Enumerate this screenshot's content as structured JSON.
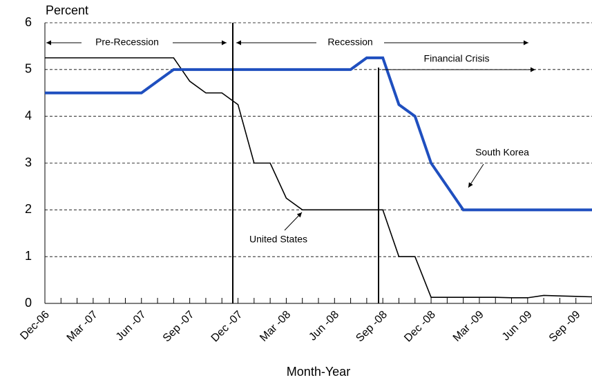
{
  "chart_data": {
    "type": "line",
    "y_label": "Percent",
    "x_label": "Month-Year",
    "categories": [
      "Dec-06",
      null,
      null,
      "Mar -07",
      null,
      null,
      "Jun -07",
      null,
      null,
      "Sep -07",
      null,
      null,
      "Dec -07",
      null,
      null,
      "Mar -08",
      null,
      null,
      "Jun -08",
      null,
      null,
      "Sep -08",
      null,
      null,
      "Dec -08",
      null,
      null,
      "Mar -09",
      null,
      null,
      "Jun -09",
      null,
      null,
      "Sep -09",
      null
    ],
    "series": [
      {
        "name": "United States",
        "color": "#000000",
        "values": [
          5.25,
          5.25,
          5.25,
          5.25,
          5.25,
          5.25,
          5.25,
          5.25,
          5.25,
          4.75,
          4.5,
          4.5,
          4.25,
          3,
          3,
          2.25,
          2,
          2,
          2,
          2,
          2,
          2,
          1,
          1,
          0.13,
          0.13,
          0.13,
          0.13,
          0.13,
          0.12,
          0.12,
          0.17,
          0.16,
          0.15,
          0.14
        ]
      },
      {
        "name": "South Korea",
        "color": "#1f4fbf",
        "values": [
          4.5,
          4.5,
          4.5,
          4.5,
          4.5,
          4.5,
          4.5,
          4.75,
          5,
          5,
          5,
          5,
          5,
          5,
          5,
          5,
          5,
          5,
          5,
          5,
          5.25,
          5.25,
          4.25,
          4,
          3,
          2.5,
          2,
          2,
          2,
          2,
          2,
          2,
          2,
          2,
          2
        ]
      }
    ],
    "ylim": [
      0,
      6
    ],
    "yticks": [
      0,
      1,
      2,
      3,
      4,
      5,
      6
    ],
    "grid": true,
    "annotations": [
      "Pre-Recession",
      "Recession",
      "Financial Crisis"
    ]
  }
}
